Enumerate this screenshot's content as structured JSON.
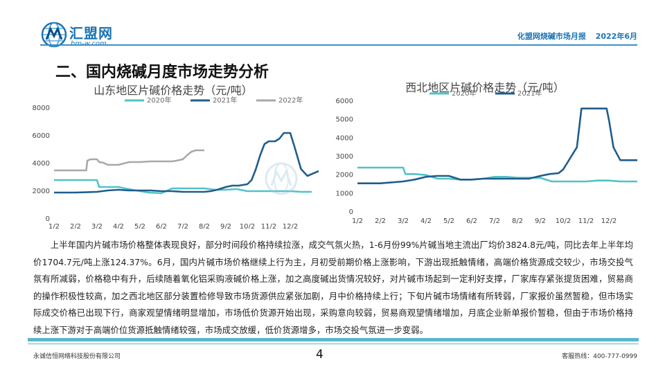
{
  "header": {
    "logo_cn": "汇盟网",
    "logo_en": "hm-w.com",
    "report_name": "化盟网烧碱市场月报",
    "report_date": "2022年6月"
  },
  "section_title": "二、国内烧碱月度市场走势分析",
  "chart_data": [
    {
      "type": "line",
      "title": "山东地区片碱价格走势（元/吨）",
      "categories": [
        "1/2",
        "2/2",
        "3/2",
        "4/2",
        "5/2",
        "6/2",
        "7/2",
        "8/2",
        "9/2",
        "10/2",
        "11/2",
        "12/2"
      ],
      "ylim": [
        0,
        8000
      ],
      "yticks": [
        "0",
        "2000",
        "4000",
        "6000",
        "8000"
      ],
      "grid": false,
      "legend_position": "top",
      "series": [
        {
          "name": "2020年",
          "color": "#4fc3c7",
          "x": [
            0,
            1,
            1.05,
            2,
            2.1,
            3,
            3.3,
            4,
            4.4,
            5,
            5.5,
            6,
            6.3,
            7,
            7.5,
            8,
            8.5,
            9,
            9.5,
            10,
            10.5,
            11,
            11.5,
            12
          ],
          "values": [
            2800,
            2800,
            2800,
            2800,
            2300,
            2300,
            2200,
            2000,
            1900,
            1850,
            2200,
            2200,
            2200,
            2200,
            2100,
            2100,
            2150,
            2000,
            2000,
            2000,
            2000,
            2000,
            1950,
            1950
          ]
        },
        {
          "name": "2021年",
          "color": "#1f5d8c",
          "x": [
            0,
            1,
            2,
            2.5,
            3,
            3.5,
            4,
            4.5,
            5,
            5.5,
            6,
            6.5,
            7,
            7.3,
            7.6,
            8,
            8.3,
            8.6,
            8.8,
            9,
            9.2,
            9.4,
            9.6,
            9.8,
            10,
            10.3,
            10.5,
            10.7,
            11,
            11.2,
            11.5,
            11.8,
            12.4
          ],
          "values": [
            1900,
            1900,
            1950,
            2050,
            2100,
            2050,
            2050,
            2050,
            2000,
            2000,
            1950,
            1950,
            1950,
            2000,
            2100,
            2300,
            2400,
            2400,
            2450,
            2500,
            2800,
            3600,
            4600,
            5400,
            5600,
            5600,
            5800,
            6200,
            6200,
            5200,
            3600,
            3100,
            3500
          ]
        },
        {
          "name": "2022年",
          "color": "#a8a8a8",
          "x": [
            0,
            1.5,
            1.55,
            1.7,
            2,
            2.1,
            2.3,
            2.5,
            2.7,
            3,
            3.5,
            4,
            4.5,
            5,
            5.5,
            5.7,
            6,
            6.2,
            6.4,
            6.6,
            6.8,
            7
          ],
          "values": [
            3500,
            3500,
            4200,
            4300,
            4300,
            4100,
            4050,
            3900,
            3900,
            3900,
            4100,
            4100,
            4150,
            4150,
            4150,
            4200,
            4300,
            4600,
            4850,
            4950,
            4950,
            4950
          ]
        }
      ]
    },
    {
      "type": "line",
      "title": "西北地区片碱价格走势（元/吨）",
      "categories": [
        "1/2",
        "2/2",
        "3/2",
        "4/2",
        "5/2",
        "6/2",
        "7/2",
        "8/2",
        "9/2",
        "10/2",
        "11/2",
        "12/2"
      ],
      "ylim": [
        0,
        6000
      ],
      "yticks": [
        "0",
        "1000",
        "2000",
        "3000",
        "4000",
        "5000",
        "6000"
      ],
      "grid": false,
      "legend_position": "top",
      "series": [
        {
          "name": "2020年",
          "color": "#4fc3c7",
          "x": [
            0,
            1,
            1.5,
            2,
            2.1,
            2.5,
            3,
            3.5,
            4,
            4.5,
            5,
            5.5,
            6,
            6.5,
            7,
            7.5,
            8,
            8.5,
            9,
            9.5,
            10,
            10.5,
            11,
            11.5,
            12,
            12.3,
            12.9
          ],
          "values": [
            2400,
            2400,
            2400,
            2400,
            2050,
            2050,
            2000,
            1800,
            1800,
            1750,
            1750,
            1800,
            1900,
            1900,
            1850,
            1850,
            1850,
            1650,
            1650,
            1650,
            1650,
            1700,
            1700,
            1650,
            1650,
            1650,
            1650
          ]
        },
        {
          "name": "2021年",
          "color": "#1f5d8c",
          "x": [
            0,
            1,
            2,
            2.5,
            3,
            3.5,
            4,
            4.5,
            5,
            5.5,
            6,
            6.5,
            7,
            7.5,
            8,
            8.4,
            8.8,
            9,
            9.2,
            9.4,
            9.6,
            9.8,
            10,
            10.3,
            10.6,
            10.9,
            11,
            11.2,
            11.5,
            12,
            12.4,
            12.7,
            12.9
          ],
          "values": [
            1550,
            1550,
            1650,
            1750,
            1900,
            1950,
            1950,
            1750,
            1750,
            1800,
            1800,
            1800,
            1800,
            1800,
            1950,
            2050,
            2100,
            2300,
            2700,
            3100,
            3500,
            5600,
            5600,
            5600,
            5600,
            5600,
            5000,
            3500,
            2800,
            2800,
            2800,
            2900,
            3000
          ]
        }
      ]
    }
  ],
  "body_text": "上半年国内片碱市场价格整体表现良好，部分时间段价格持续拉涨，成交气氛火热，1-6月份99%片碱当地主流出厂均价3824.8元/吨，同比去年上半年均价1704.7元/吨上涨124.37%。6月，国内片碱市场价格继续上行为主，月初受前期价格上涨影响，下游出现抵触情绪，高端价格货源成交较少，市场交投气氛有所减弱，价格稳中有升，后续随着氧化铝采购液碱价格上涨，加之高度碱出货情况较好，对片碱市场起到一定利好支撑，厂家库存紧张提货困难，贸易商的操作积极性较高，加之西北地区部分装置检修导致市场货源供应紧张加剧，月中价格持续上行；下旬片碱市场情绪有所转弱，厂家报价虽然暂稳，但市场实际成交价格已出现下行，商家观望情绪明显增加，市场低价货源开始出现，采购意向较弱，贸易商观望情绪增加，月底企业新单报价暂稳，但由于市场价格持续上涨下游对于高端价位货源抵触情绪较强，市场成交放缓，低价货源增多，市场交投气氛进一步变弱。",
  "footer": {
    "company": "永诚信恒网络科技股份有限公司",
    "page": "4",
    "hotline": "客服热线：400-777-0999"
  },
  "colors": {
    "brand": "#1b73b3",
    "footer_accent": "#5ab8c9"
  }
}
